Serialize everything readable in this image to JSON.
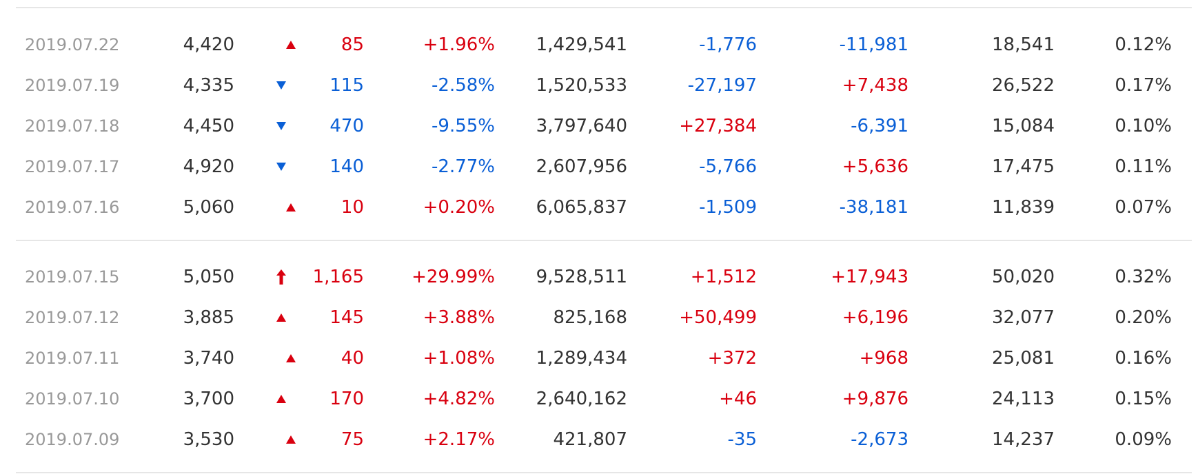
{
  "colors": {
    "up": "#d9000f",
    "down": "#0a5fd6",
    "neutral": "#333333",
    "date": "#999999",
    "rule": "#e6e6e6"
  },
  "groups": [
    {
      "rows": [
        {
          "date": "2019.07.22",
          "close": "4,420",
          "dir": "up",
          "icon": "triangle-up-icon",
          "change": "85",
          "pct": "+1.96%",
          "volume": "1,429,541",
          "inst": "-1,776",
          "inst_dir": "down",
          "foreign": "-11,981",
          "foreign_dir": "down",
          "holdings": "18,541",
          "ratio": "0.12%"
        },
        {
          "date": "2019.07.19",
          "close": "4,335",
          "dir": "down",
          "icon": "triangle-down-icon",
          "change": "115",
          "pct": "-2.58%",
          "volume": "1,520,533",
          "inst": "-27,197",
          "inst_dir": "down",
          "foreign": "+7,438",
          "foreign_dir": "up",
          "holdings": "26,522",
          "ratio": "0.17%"
        },
        {
          "date": "2019.07.18",
          "close": "4,450",
          "dir": "down",
          "icon": "triangle-down-icon",
          "change": "470",
          "pct": "-9.55%",
          "volume": "3,797,640",
          "inst": "+27,384",
          "inst_dir": "up",
          "foreign": "-6,391",
          "foreign_dir": "down",
          "holdings": "15,084",
          "ratio": "0.10%"
        },
        {
          "date": "2019.07.17",
          "close": "4,920",
          "dir": "down",
          "icon": "triangle-down-icon",
          "change": "140",
          "pct": "-2.77%",
          "volume": "2,607,956",
          "inst": "-5,766",
          "inst_dir": "down",
          "foreign": "+5,636",
          "foreign_dir": "up",
          "holdings": "17,475",
          "ratio": "0.11%"
        },
        {
          "date": "2019.07.16",
          "close": "5,060",
          "dir": "up",
          "icon": "triangle-up-icon",
          "change": "10",
          "pct": "+0.20%",
          "volume": "6,065,837",
          "inst": "-1,509",
          "inst_dir": "down",
          "foreign": "-38,181",
          "foreign_dir": "down",
          "holdings": "11,839",
          "ratio": "0.07%"
        }
      ]
    },
    {
      "rows": [
        {
          "date": "2019.07.15",
          "close": "5,050",
          "dir": "up",
          "icon": "upper-limit-arrow-icon",
          "change": "1,165",
          "pct": "+29.99%",
          "volume": "9,528,511",
          "inst": "+1,512",
          "inst_dir": "up",
          "foreign": "+17,943",
          "foreign_dir": "up",
          "holdings": "50,020",
          "ratio": "0.32%"
        },
        {
          "date": "2019.07.12",
          "close": "3,885",
          "dir": "up",
          "icon": "triangle-up-icon",
          "change": "145",
          "pct": "+3.88%",
          "volume": "825,168",
          "inst": "+50,499",
          "inst_dir": "up",
          "foreign": "+6,196",
          "foreign_dir": "up",
          "holdings": "32,077",
          "ratio": "0.20%"
        },
        {
          "date": "2019.07.11",
          "close": "3,740",
          "dir": "up",
          "icon": "triangle-up-icon",
          "change": "40",
          "pct": "+1.08%",
          "volume": "1,289,434",
          "inst": "+372",
          "inst_dir": "up",
          "foreign": "+968",
          "foreign_dir": "up",
          "holdings": "25,081",
          "ratio": "0.16%"
        },
        {
          "date": "2019.07.10",
          "close": "3,700",
          "dir": "up",
          "icon": "triangle-up-icon",
          "change": "170",
          "pct": "+4.82%",
          "volume": "2,640,162",
          "inst": "+46",
          "inst_dir": "up",
          "foreign": "+9,876",
          "foreign_dir": "up",
          "holdings": "24,113",
          "ratio": "0.15%"
        },
        {
          "date": "2019.07.09",
          "close": "3,530",
          "dir": "up",
          "icon": "triangle-up-icon",
          "change": "75",
          "pct": "+2.17%",
          "volume": "421,807",
          "inst": "-35",
          "inst_dir": "down",
          "foreign": "-2,673",
          "foreign_dir": "down",
          "holdings": "14,237",
          "ratio": "0.09%"
        }
      ]
    }
  ]
}
